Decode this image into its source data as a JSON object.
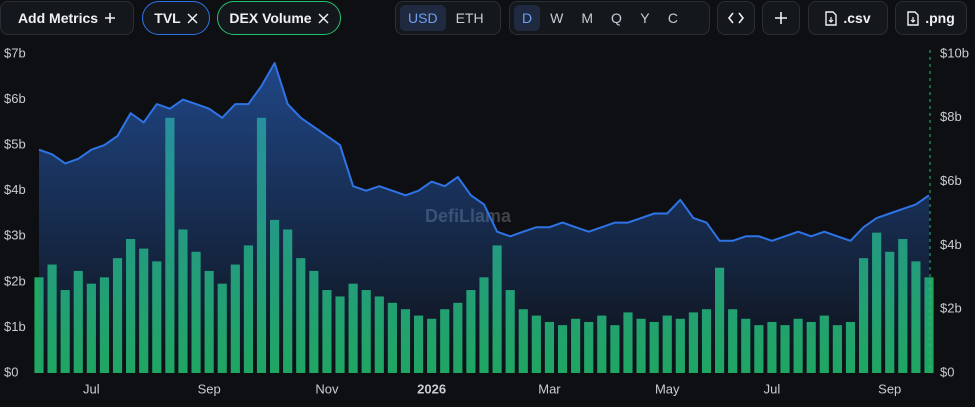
{
  "toolbar": {
    "add_metrics": "Add Metrics",
    "currencies": [
      "USD",
      "ETH"
    ],
    "active_currency": 0,
    "periods": [
      "D",
      "W",
      "M",
      "Q",
      "Y",
      "C"
    ],
    "active_period": 0,
    "downloads": [
      ".csv",
      ".png"
    ]
  },
  "chart_data": {
    "type": "line-bar",
    "watermark": "DefiLlama",
    "grid": false,
    "categories": [
      null,
      null,
      null,
      null,
      "Jul",
      null,
      null,
      null,
      null,
      null,
      null,
      null,
      null,
      "Sep",
      null,
      null,
      null,
      null,
      null,
      null,
      null,
      null,
      "Nov",
      null,
      null,
      null,
      null,
      null,
      null,
      null,
      "2026",
      null,
      null,
      null,
      null,
      null,
      null,
      null,
      null,
      "Mar",
      null,
      null,
      null,
      null,
      null,
      null,
      null,
      null,
      "May",
      null,
      null,
      null,
      null,
      null,
      null,
      null,
      "Jul",
      null,
      null,
      null,
      null,
      null,
      null,
      null,
      null,
      "Sep",
      null,
      null,
      null
    ],
    "ylim": [
      0,
      7000000000.0
    ],
    "yticks": [
      {
        "value": 0,
        "label": "$0"
      },
      {
        "value": 1000000000.0,
        "label": "$1b"
      },
      {
        "value": 2000000000.0,
        "label": "$2b"
      },
      {
        "value": 3000000000.0,
        "label": "$3b"
      },
      {
        "value": 4000000000.0,
        "label": "$4b"
      },
      {
        "value": 5000000000.0,
        "label": "$5b"
      },
      {
        "value": 6000000000.0,
        "label": "$6b"
      },
      {
        "value": 7000000000.0,
        "label": "$7b"
      }
    ],
    "y2lim": [
      0,
      10000000000.0
    ],
    "y2ticks": [
      {
        "value": 0,
        "label": "$0"
      },
      {
        "value": 2000000000.0,
        "label": "$2b"
      },
      {
        "value": 4000000000.0,
        "label": "$4b"
      },
      {
        "value": 6000000000.0,
        "label": "$6b"
      },
      {
        "value": 8000000000.0,
        "label": "$8b"
      },
      {
        "value": 10000000000.0,
        "label": "$10b"
      }
    ],
    "series": [
      {
        "name": "TVL",
        "type": "line",
        "color": "#2f74e6",
        "values": [
          4900000000.0,
          4800000000.0,
          4600000000.0,
          4700000000.0,
          4900000000.0,
          5000000000.0,
          5200000000.0,
          5700000000.0,
          5500000000.0,
          5900000000.0,
          5800000000.0,
          6000000000.0,
          5900000000.0,
          5800000000.0,
          5600000000.0,
          5900000000.0,
          5900000000.0,
          6300000000.0,
          6800000000.0,
          5900000000.0,
          5600000000.0,
          5400000000.0,
          5200000000.0,
          5000000000.0,
          4100000000.0,
          4000000000.0,
          4100000000.0,
          4000000000.0,
          3900000000.0,
          4000000000.0,
          4200000000.0,
          4100000000.0,
          4300000000.0,
          3900000000.0,
          3700000000.0,
          3100000000.0,
          3000000000.0,
          3100000000.0,
          3200000000.0,
          3200000000.0,
          3300000000.0,
          3200000000.0,
          3100000000.0,
          3200000000.0,
          3300000000.0,
          3300000000.0,
          3400000000.0,
          3500000000.0,
          3500000000.0,
          3800000000.0,
          3400000000.0,
          3300000000.0,
          2900000000.0,
          2900000000.0,
          3000000000.0,
          3000000000.0,
          2900000000.0,
          3000000000.0,
          3100000000.0,
          3000000000.0,
          3100000000.0,
          3000000000.0,
          2900000000.0,
          3200000000.0,
          3400000000.0,
          3500000000.0,
          3600000000.0,
          3700000000.0,
          3900000000.0
        ]
      },
      {
        "name": "DEX Volume",
        "type": "bar",
        "axis": "y2",
        "color": "#25c26e",
        "values": [
          3000000000.0,
          3400000000.0,
          2600000000.0,
          3200000000.0,
          2800000000.0,
          3000000000.0,
          3600000000.0,
          4200000000.0,
          3900000000.0,
          3500000000.0,
          8000000000.0,
          4500000000.0,
          3800000000.0,
          3200000000.0,
          2800000000.0,
          3400000000.0,
          4000000000.0,
          8000000000.0,
          4800000000.0,
          4500000000.0,
          3600000000.0,
          3200000000.0,
          2600000000.0,
          2400000000.0,
          2800000000.0,
          2600000000.0,
          2400000000.0,
          2200000000.0,
          2000000000.0,
          1800000000.0,
          1700000000.0,
          2000000000.0,
          2200000000.0,
          2600000000.0,
          3000000000.0,
          4000000000.0,
          2600000000.0,
          2000000000.0,
          1800000000.0,
          1600000000.0,
          1500000000.0,
          1700000000.0,
          1600000000.0,
          1800000000.0,
          1500000000.0,
          1900000000.0,
          1700000000.0,
          1600000000.0,
          1800000000.0,
          1700000000.0,
          1900000000.0,
          2000000000.0,
          3300000000.0,
          2000000000.0,
          1700000000.0,
          1500000000.0,
          1600000000.0,
          1500000000.0,
          1700000000.0,
          1600000000.0,
          1800000000.0,
          1500000000.0,
          1600000000.0,
          3600000000.0,
          4400000000.0,
          3800000000.0,
          4200000000.0,
          3500000000.0,
          3000000000.0
        ]
      }
    ]
  }
}
